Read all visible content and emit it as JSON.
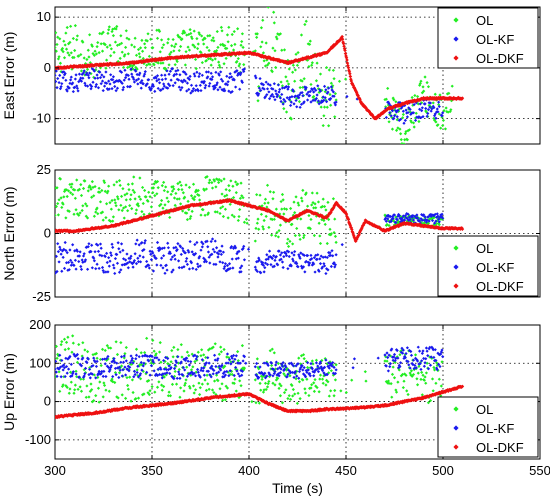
{
  "colors": {
    "OL": "#22ee22",
    "OL-KF": "#1a1aee",
    "OL-DKF": "#ee1111"
  },
  "chart_data": [
    {
      "type": "scatter",
      "ylabel": "East Error (m)",
      "xlim": [
        300,
        550
      ],
      "ylim": [
        -15,
        12
      ],
      "x_ticks": [
        300,
        350,
        400,
        450,
        500,
        550
      ],
      "y_ticks": [
        -10,
        0,
        10
      ],
      "y_tick_labels": [
        "-10",
        "0",
        "10"
      ],
      "grid": true,
      "legend": "top-right",
      "legend_entries": [
        "OL",
        "OL-KF",
        "OL-DKF"
      ],
      "series": [
        {
          "name": "OL",
          "color": "#22ee22",
          "x": [
            300,
            310,
            320,
            330,
            340,
            350,
            360,
            370,
            380,
            390,
            397,
            405,
            410,
            420,
            430,
            438,
            472,
            480,
            490,
            500,
            505
          ],
          "y": [
            3,
            4,
            2,
            5,
            3,
            4,
            3,
            4,
            3,
            5,
            2,
            0,
            8,
            -5,
            3,
            -6,
            -8,
            -12,
            -5,
            -10,
            -6
          ],
          "spread": [
            4,
            5,
            4,
            4,
            4,
            4,
            4,
            4,
            4,
            4,
            5,
            7,
            7,
            7,
            7,
            7,
            4,
            4,
            4,
            4,
            3
          ]
        },
        {
          "name": "OL-KF",
          "color": "#1a1aee",
          "x": [
            300,
            310,
            320,
            330,
            340,
            350,
            360,
            370,
            380,
            390,
            397,
            405,
            415,
            425,
            440,
            472,
            480,
            490,
            500
          ],
          "y": [
            -2,
            -3,
            -2,
            -3,
            -2,
            -3,
            -2,
            -3,
            -2,
            -3,
            -2,
            -4,
            -5,
            -6,
            -5,
            -8,
            -9,
            -8,
            -8
          ],
          "spread": [
            2,
            2,
            2,
            2,
            2,
            2,
            2,
            2,
            2,
            2,
            2,
            2,
            2,
            2,
            2,
            2,
            2,
            2,
            2
          ]
        },
        {
          "name": "OL-DKF",
          "color": "#ee1111",
          "x": [
            300,
            320,
            340,
            360,
            380,
            400,
            410,
            420,
            430,
            440,
            448,
            453,
            458,
            465,
            472,
            480,
            490,
            500,
            510
          ],
          "y": [
            0,
            0.5,
            1,
            2,
            2.5,
            3,
            2,
            1,
            2,
            3,
            6,
            -3,
            -7,
            -10,
            -8,
            -7,
            -6,
            -6,
            -6
          ]
        }
      ]
    },
    {
      "type": "scatter",
      "ylabel": "North Error (m)",
      "xlim": [
        300,
        550
      ],
      "ylim": [
        -25,
        25
      ],
      "x_ticks": [
        300,
        350,
        400,
        450,
        500,
        550
      ],
      "y_ticks": [
        -25,
        0,
        25
      ],
      "y_tick_labels": [
        "-25",
        "0",
        "25"
      ],
      "grid": true,
      "legend": "bottom-right",
      "legend_entries": [
        "OL",
        "OL-KF",
        "OL-DKF"
      ],
      "series": [
        {
          "name": "OL",
          "color": "#22ee22",
          "x": [
            300,
            310,
            320,
            330,
            340,
            350,
            360,
            370,
            380,
            390,
            397,
            405,
            410,
            420,
            430,
            440,
            472,
            480,
            490,
            500
          ],
          "y": [
            15,
            13,
            14,
            12,
            15,
            13,
            14,
            12,
            15,
            13,
            12,
            5,
            10,
            4,
            8,
            5,
            5,
            5,
            5,
            5
          ],
          "spread": [
            8,
            8,
            8,
            8,
            8,
            8,
            8,
            8,
            8,
            8,
            8,
            10,
            10,
            10,
            10,
            10,
            2,
            2,
            2,
            2
          ]
        },
        {
          "name": "OL-KF",
          "color": "#1a1aee",
          "x": [
            300,
            310,
            320,
            330,
            340,
            350,
            360,
            370,
            380,
            390,
            397,
            405,
            415,
            425,
            440,
            472,
            480,
            490,
            500
          ],
          "y": [
            -10,
            -8,
            -9,
            -10,
            -8,
            -9,
            -10,
            -9,
            -8,
            -9,
            -10,
            -12,
            -10,
            -11,
            -12,
            6,
            6,
            6,
            6
          ],
          "spread": [
            6,
            6,
            6,
            6,
            6,
            6,
            6,
            6,
            6,
            6,
            6,
            4,
            4,
            4,
            4,
            2,
            2,
            2,
            2
          ]
        },
        {
          "name": "OL-DKF",
          "color": "#ee1111",
          "x": [
            300,
            310,
            320,
            330,
            340,
            350,
            360,
            370,
            380,
            390,
            400,
            410,
            420,
            430,
            440,
            445,
            450,
            455,
            460,
            470,
            480,
            490,
            500,
            510
          ],
          "y": [
            1,
            1,
            2,
            3,
            5,
            7,
            9,
            11,
            12,
            13,
            11,
            9,
            5,
            9,
            6,
            12,
            8,
            -3,
            5,
            1,
            4,
            3,
            2,
            2
          ]
        }
      ]
    },
    {
      "type": "scatter",
      "xlabel": "Time (s)",
      "ylabel": "Up Error (m)",
      "xlim": [
        300,
        550
      ],
      "ylim": [
        -150,
        200
      ],
      "x_ticks": [
        300,
        350,
        400,
        450,
        500,
        550
      ],
      "x_tick_labels": [
        "300",
        "350",
        "400",
        "450",
        "500",
        "550"
      ],
      "y_ticks": [
        -100,
        0,
        100,
        200
      ],
      "y_tick_labels": [
        "-100",
        "0",
        "100",
        "200"
      ],
      "grid": true,
      "legend": "bottom-right",
      "legend_entries": [
        "OL",
        "OL-KF",
        "OL-DKF"
      ],
      "series": [
        {
          "name": "OL",
          "color": "#22ee22",
          "x": [
            300,
            310,
            320,
            330,
            340,
            350,
            360,
            370,
            380,
            390,
            397,
            405,
            410,
            420,
            430,
            440,
            472,
            480,
            490,
            500
          ],
          "y": [
            80,
            100,
            60,
            90,
            70,
            100,
            80,
            70,
            90,
            60,
            80,
            50,
            90,
            40,
            70,
            60,
            60,
            80,
            50,
            70
          ],
          "spread": [
            70,
            80,
            70,
            80,
            70,
            80,
            70,
            80,
            70,
            80,
            70,
            60,
            60,
            60,
            60,
            60,
            60,
            60,
            60,
            60
          ]
        },
        {
          "name": "OL-KF",
          "color": "#1a1aee",
          "x": [
            300,
            310,
            320,
            330,
            340,
            350,
            360,
            370,
            380,
            390,
            397,
            405,
            415,
            425,
            440,
            472,
            480,
            490,
            500
          ],
          "y": [
            90,
            95,
            85,
            90,
            95,
            90,
            85,
            95,
            90,
            95,
            90,
            80,
            85,
            80,
            90,
            110,
            120,
            110,
            115
          ],
          "spread": [
            30,
            30,
            30,
            30,
            30,
            30,
            30,
            30,
            30,
            30,
            30,
            20,
            20,
            20,
            20,
            30,
            30,
            30,
            30
          ]
        },
        {
          "name": "OL-DKF",
          "color": "#ee1111",
          "x": [
            300,
            320,
            340,
            360,
            380,
            400,
            410,
            420,
            430,
            440,
            450,
            460,
            470,
            480,
            490,
            500,
            510
          ],
          "y": [
            -40,
            -30,
            -15,
            -5,
            10,
            20,
            -5,
            -25,
            -25,
            -20,
            -18,
            -15,
            -10,
            0,
            10,
            25,
            40
          ]
        }
      ]
    }
  ]
}
